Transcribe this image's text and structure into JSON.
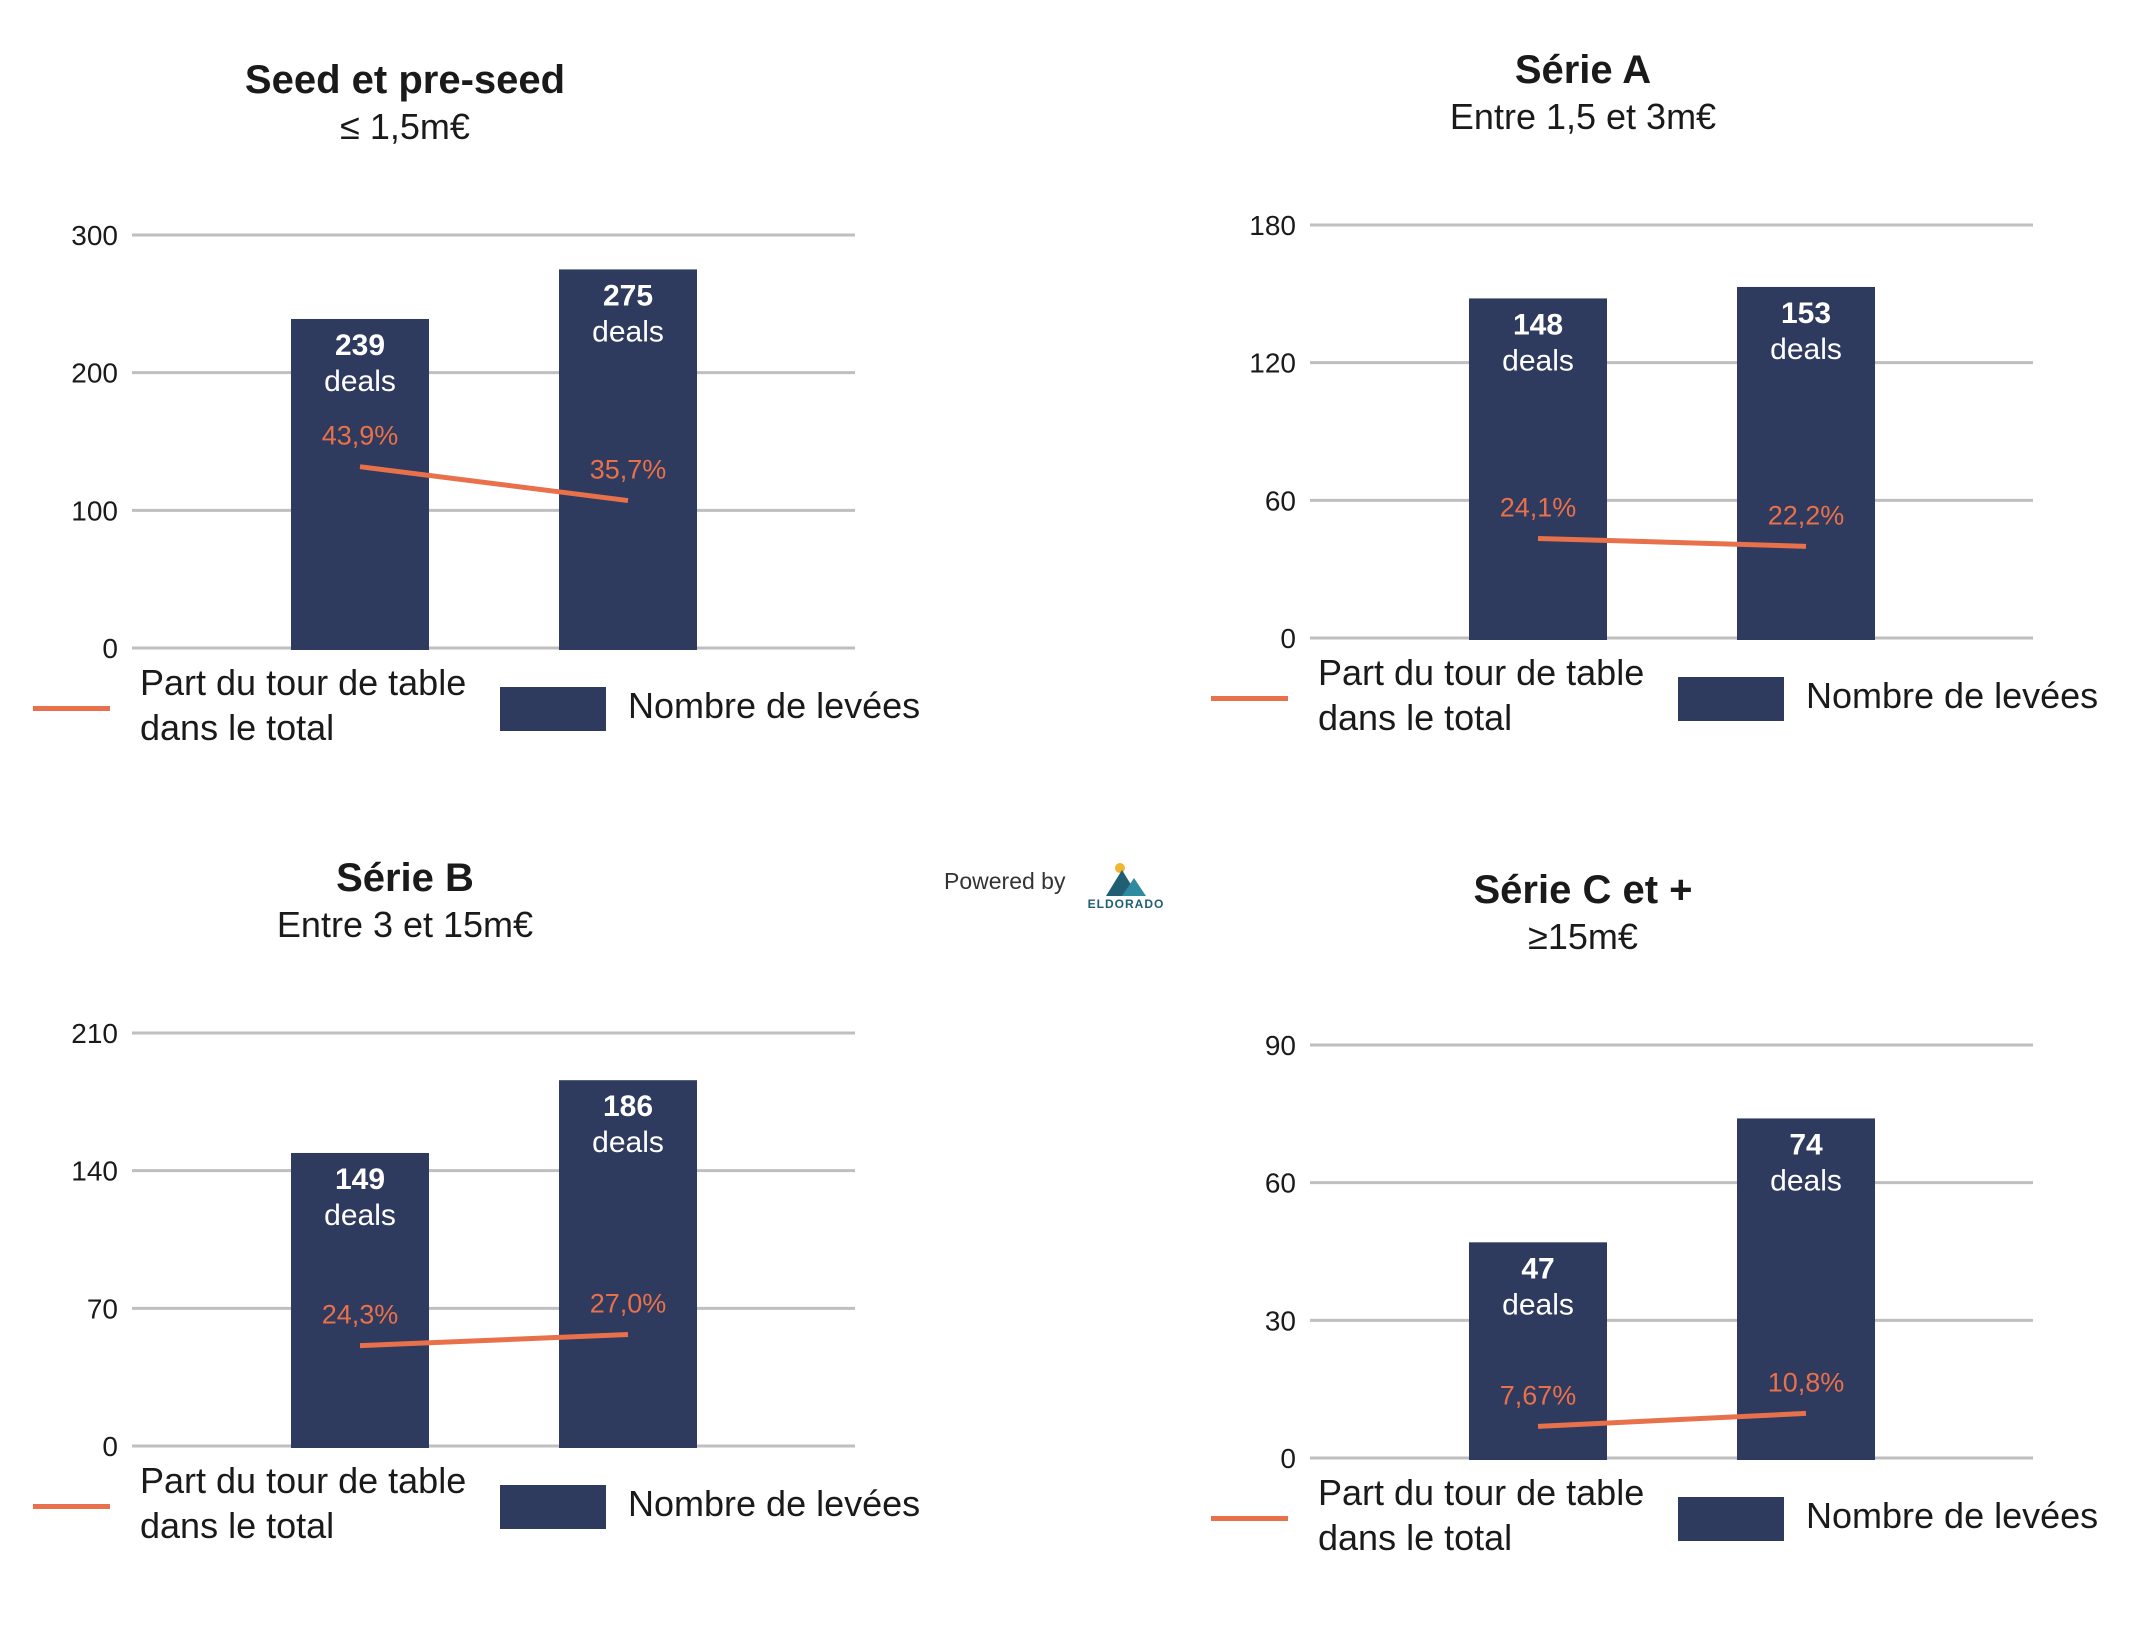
{
  "chart_data": [
    {
      "type": "bar",
      "title": "Seed et pre-seed",
      "subtitle": "≤ 1,5m€",
      "ylim": [
        0,
        300
      ],
      "yticks": [
        0,
        100,
        200,
        300
      ],
      "grid": true,
      "legend_position": "bottom",
      "series": [
        {
          "name": "Nombre de levées",
          "type": "bar",
          "values": [
            239,
            275
          ],
          "value_labels": [
            "239",
            "275"
          ],
          "unit_label": "deals"
        },
        {
          "name": "Part du tour de table dans le total",
          "type": "line",
          "values": [
            43.9,
            35.7
          ],
          "value_labels": [
            "43,9%",
            "35,7%"
          ]
        }
      ]
    },
    {
      "type": "bar",
      "title": "Série A",
      "subtitle": "Entre 1,5 et 3m€",
      "ylim": [
        0,
        180
      ],
      "yticks": [
        0,
        60,
        120,
        180
      ],
      "grid": true,
      "legend_position": "bottom",
      "series": [
        {
          "name": "Nombre de levées",
          "type": "bar",
          "values": [
            148,
            153
          ],
          "value_labels": [
            "148",
            "153"
          ],
          "unit_label": "deals"
        },
        {
          "name": "Part du tour de table dans le total",
          "type": "line",
          "values": [
            24.1,
            22.2
          ],
          "value_labels": [
            "24,1%",
            "22,2%"
          ]
        }
      ]
    },
    {
      "type": "bar",
      "title": "Série B",
      "subtitle": "Entre 3 et 15m€",
      "ylim": [
        0,
        210
      ],
      "yticks": [
        0,
        70,
        140,
        210
      ],
      "grid": true,
      "legend_position": "bottom",
      "series": [
        {
          "name": "Nombre de levées",
          "type": "bar",
          "values": [
            149,
            186
          ],
          "value_labels": [
            "149",
            "186"
          ],
          "unit_label": "deals"
        },
        {
          "name": "Part du tour de table dans le total",
          "type": "line",
          "values": [
            24.3,
            27.0
          ],
          "value_labels": [
            "24,3%",
            "27,0%"
          ]
        }
      ]
    },
    {
      "type": "bar",
      "title": "Série C et +",
      "subtitle": "≥15m€",
      "ylim": [
        0,
        90
      ],
      "yticks": [
        0,
        30,
        60,
        90
      ],
      "grid": true,
      "legend_position": "bottom",
      "series": [
        {
          "name": "Nombre de levées",
          "type": "bar",
          "values": [
            47,
            74
          ],
          "value_labels": [
            "47",
            "74"
          ],
          "unit_label": "deals"
        },
        {
          "name": "Part du tour de table dans le total",
          "type": "line",
          "values": [
            7.67,
            10.8
          ],
          "value_labels": [
            "7,67%",
            "10,8%"
          ]
        }
      ]
    }
  ],
  "legend": {
    "line_label": "Part du tour de table dans le total",
    "bar_label": "Nombre de levées"
  },
  "colors": {
    "bar": "#2e3a5e",
    "line": "#e8704a",
    "grid": "#bfbfbf"
  },
  "branding": {
    "powered_by": "Powered by",
    "logo_text": "ELDORADO"
  }
}
